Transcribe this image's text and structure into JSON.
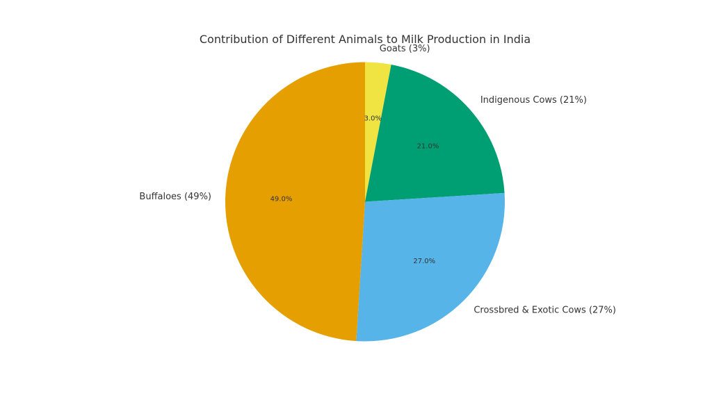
{
  "chart_data": {
    "type": "pie",
    "title": "Contribution of Different Animals to Milk Production in India",
    "slices": [
      {
        "label": "Goats (3%)",
        "pct_label": "3.0%",
        "value": 3,
        "color": "#f0e442"
      },
      {
        "label": "Indigenous Cows (21%)",
        "pct_label": "21.0%",
        "value": 21,
        "color": "#009e73"
      },
      {
        "label": "Crossbred & Exotic Cows (27%)",
        "pct_label": "27.0%",
        "value": 27,
        "color": "#56b4e9"
      },
      {
        "label": "Buffaloes (49%)",
        "pct_label": "49.0%",
        "value": 49,
        "color": "#e69f00"
      }
    ],
    "start_angle": 90,
    "direction": "clockwise"
  }
}
